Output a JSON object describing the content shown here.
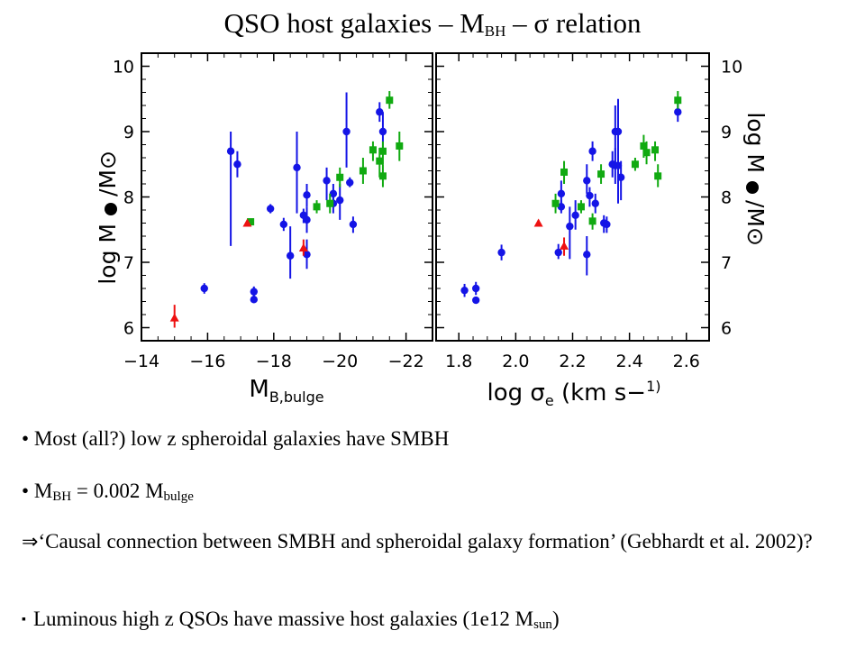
{
  "title": {
    "main": "QSO host galaxies",
    "dash1": "–",
    "m": "M",
    "bh": "BH",
    "dash2": "–",
    "sigma": "σ",
    "rel": "relation"
  },
  "bullets": {
    "b1": {
      "marker": "•",
      "text": "Most (all?) low z spheroidal galaxies have SMBH"
    },
    "b2": {
      "marker": "•",
      "m1": "M",
      "s1": "BH",
      "eq": " = 0.002 M",
      "s2": "bulge"
    },
    "b3": {
      "arrow": "⇒",
      "text": "‘Causal connection between SMBH and spheroidal galaxy formation’ (Gebhardt et al. 2002)?"
    },
    "b4": {
      "marker": "▪",
      "text": "Luminous high z QSOs have massive host galaxies (1e12 M",
      "sub": "sun",
      "close": ")"
    }
  },
  "chart_data": [
    {
      "type": "scatter",
      "xlabel": "M_B,bulge",
      "ylabel": "log M● / M⊙",
      "xlim": [
        -14,
        -22.8
      ],
      "ylim": [
        5.8,
        10.2
      ],
      "xticks": [
        -14,
        -16,
        -18,
        -20,
        -22
      ],
      "xtick_labels": [
        "−14",
        "−16",
        "−18",
        "−20",
        "−22"
      ],
      "yticks": [
        6,
        7,
        8,
        9,
        10
      ],
      "ytick_labels": [
        "6",
        "7",
        "8",
        "9",
        "10"
      ],
      "series": [
        {
          "color": "#1414e6",
          "marker": "circle",
          "points": [
            {
              "x": -15.9,
              "y": 6.6,
              "lo": 6.52,
              "hi": 6.68
            },
            {
              "x": -16.7,
              "y": 8.7,
              "lo": 7.25,
              "hi": 9.0
            },
            {
              "x": -16.9,
              "y": 8.5,
              "lo": 8.3,
              "hi": 8.7
            },
            {
              "x": -17.4,
              "y": 6.55,
              "lo": 6.47,
              "hi": 6.63
            },
            {
              "x": -17.4,
              "y": 6.43,
              "lo": 6.38,
              "hi": 6.48
            },
            {
              "x": -17.9,
              "y": 7.82,
              "lo": 7.75,
              "hi": 7.89
            },
            {
              "x": -18.3,
              "y": 7.58,
              "lo": 7.48,
              "hi": 7.68
            },
            {
              "x": -18.5,
              "y": 7.1,
              "lo": 6.75,
              "hi": 7.55
            },
            {
              "x": -18.7,
              "y": 8.45,
              "lo": 7.75,
              "hi": 9.0
            },
            {
              "x": -18.9,
              "y": 7.72,
              "lo": 7.6,
              "hi": 7.82
            },
            {
              "x": -19.0,
              "y": 7.12,
              "lo": 6.9,
              "hi": 7.35
            },
            {
              "x": -19.0,
              "y": 7.65,
              "lo": 7.45,
              "hi": 7.85
            },
            {
              "x": -19.0,
              "y": 8.03,
              "lo": 7.85,
              "hi": 8.2
            },
            {
              "x": -19.6,
              "y": 8.25,
              "lo": 7.95,
              "hi": 8.45
            },
            {
              "x": -19.8,
              "y": 8.05,
              "lo": 7.9,
              "hi": 8.2
            },
            {
              "x": -19.8,
              "y": 7.9,
              "lo": 7.75,
              "hi": 8.05
            },
            {
              "x": -20.0,
              "y": 7.95,
              "lo": 7.65,
              "hi": 8.2
            },
            {
              "x": -20.2,
              "y": 9.0,
              "lo": 8.45,
              "hi": 9.6
            },
            {
              "x": -20.4,
              "y": 7.58,
              "lo": 7.45,
              "hi": 7.7
            },
            {
              "x": -21.2,
              "y": 9.3,
              "lo": 9.15,
              "hi": 9.45
            },
            {
              "x": -21.3,
              "y": 9.0,
              "lo": 8.7,
              "hi": 9.3
            },
            {
              "x": -20.3,
              "y": 8.22,
              "lo": 8.15,
              "hi": 8.3
            }
          ]
        },
        {
          "color": "#11aa11",
          "marker": "square",
          "points": [
            {
              "x": -19.3,
              "y": 7.85,
              "lo": 7.75,
              "hi": 7.95
            },
            {
              "x": -19.7,
              "y": 7.9,
              "lo": 7.75,
              "hi": 8.05
            },
            {
              "x": -20.0,
              "y": 8.3,
              "lo": 8.15,
              "hi": 8.45
            },
            {
              "x": -20.7,
              "y": 8.4,
              "lo": 8.2,
              "hi": 8.6
            },
            {
              "x": -21.0,
              "y": 8.72,
              "lo": 8.55,
              "hi": 8.85
            },
            {
              "x": -21.2,
              "y": 8.55,
              "lo": 8.3,
              "hi": 8.75
            },
            {
              "x": -21.3,
              "y": 8.32,
              "lo": 8.15,
              "hi": 8.5
            },
            {
              "x": -21.3,
              "y": 8.7,
              "lo": 8.5,
              "hi": 8.85
            },
            {
              "x": -21.5,
              "y": 9.48,
              "lo": 9.35,
              "hi": 9.62
            },
            {
              "x": -21.8,
              "y": 8.78,
              "lo": 8.55,
              "hi": 9.0
            },
            {
              "x": -17.3,
              "y": 7.62,
              "lo": 7.58,
              "hi": 7.66
            }
          ]
        },
        {
          "color": "#ee1111",
          "marker": "triangle",
          "points": [
            {
              "x": -15.0,
              "y": 6.15,
              "lo": 6.0,
              "hi": 6.35
            },
            {
              "x": -17.2,
              "y": 7.6,
              "lo": 7.55,
              "hi": 7.65
            },
            {
              "x": -18.9,
              "y": 7.22,
              "lo": 7.1,
              "hi": 7.35
            }
          ]
        }
      ]
    },
    {
      "type": "scatter",
      "xlabel": "log σe (km s−1)",
      "ylabel": "log M● / M⊙",
      "xlim": [
        1.72,
        2.68
      ],
      "ylim": [
        5.8,
        10.2
      ],
      "xticks": [
        1.8,
        2.0,
        2.2,
        2.4,
        2.6
      ],
      "xtick_labels": [
        "1.8",
        "2.0",
        "2.2",
        "2.4",
        "2.6"
      ],
      "yticks": [
        6,
        7,
        8,
        9,
        10
      ],
      "ytick_labels": [
        "6",
        "7",
        "8",
        "9",
        "10"
      ],
      "series": [
        {
          "color": "#1414e6",
          "marker": "circle",
          "points": [
            {
              "x": 1.82,
              "y": 6.57,
              "lo": 6.47,
              "hi": 6.67
            },
            {
              "x": 1.86,
              "y": 6.6,
              "lo": 6.5,
              "hi": 6.7
            },
            {
              "x": 1.86,
              "y": 6.42,
              "lo": 6.37,
              "hi": 6.47
            },
            {
              "x": 1.95,
              "y": 7.15,
              "lo": 7.03,
              "hi": 7.27
            },
            {
              "x": 2.15,
              "y": 7.15,
              "lo": 7.05,
              "hi": 7.28
            },
            {
              "x": 2.16,
              "y": 7.85,
              "lo": 7.75,
              "hi": 7.95
            },
            {
              "x": 2.16,
              "y": 8.05,
              "lo": 7.85,
              "hi": 8.25
            },
            {
              "x": 2.19,
              "y": 7.55,
              "lo": 7.05,
              "hi": 7.85
            },
            {
              "x": 2.21,
              "y": 7.72,
              "lo": 7.5,
              "hi": 7.95
            },
            {
              "x": 2.25,
              "y": 7.12,
              "lo": 6.8,
              "hi": 7.4
            },
            {
              "x": 2.25,
              "y": 8.25,
              "lo": 8.05,
              "hi": 8.5
            },
            {
              "x": 2.26,
              "y": 8.02,
              "lo": 7.85,
              "hi": 8.15
            },
            {
              "x": 2.27,
              "y": 8.7,
              "lo": 8.55,
              "hi": 8.85
            },
            {
              "x": 2.28,
              "y": 7.9,
              "lo": 7.75,
              "hi": 8.05
            },
            {
              "x": 2.31,
              "y": 7.6,
              "lo": 7.45,
              "hi": 7.72
            },
            {
              "x": 2.32,
              "y": 7.58,
              "lo": 7.45,
              "hi": 7.7
            },
            {
              "x": 2.34,
              "y": 8.5,
              "lo": 8.3,
              "hi": 8.7
            },
            {
              "x": 2.35,
              "y": 8.48,
              "lo": 8.2,
              "hi": 8.75
            },
            {
              "x": 2.35,
              "y": 9.0,
              "lo": 8.5,
              "hi": 9.4
            },
            {
              "x": 2.36,
              "y": 9.0,
              "lo": 8.5,
              "hi": 9.5
            },
            {
              "x": 2.36,
              "y": 8.48,
              "lo": 7.9,
              "hi": 8.6
            },
            {
              "x": 2.37,
              "y": 8.3,
              "lo": 7.95,
              "hi": 8.55
            },
            {
              "x": 2.57,
              "y": 9.3,
              "lo": 9.15,
              "hi": 9.45
            }
          ]
        },
        {
          "color": "#11aa11",
          "marker": "square",
          "points": [
            {
              "x": 2.14,
              "y": 7.9,
              "lo": 7.75,
              "hi": 8.05
            },
            {
              "x": 2.17,
              "y": 8.38,
              "lo": 8.2,
              "hi": 8.55
            },
            {
              "x": 2.23,
              "y": 7.85,
              "lo": 7.75,
              "hi": 7.95
            },
            {
              "x": 2.27,
              "y": 7.63,
              "lo": 7.5,
              "hi": 7.75
            },
            {
              "x": 2.3,
              "y": 8.35,
              "lo": 8.2,
              "hi": 8.5
            },
            {
              "x": 2.42,
              "y": 8.5,
              "lo": 8.4,
              "hi": 8.6
            },
            {
              "x": 2.45,
              "y": 8.78,
              "lo": 8.6,
              "hi": 8.95
            },
            {
              "x": 2.46,
              "y": 8.68,
              "lo": 8.5,
              "hi": 8.85
            },
            {
              "x": 2.49,
              "y": 8.72,
              "lo": 8.55,
              "hi": 8.85
            },
            {
              "x": 2.5,
              "y": 8.32,
              "lo": 8.15,
              "hi": 8.5
            },
            {
              "x": 2.57,
              "y": 9.48,
              "lo": 9.35,
              "hi": 9.62
            }
          ]
        },
        {
          "color": "#ee1111",
          "marker": "triangle",
          "points": [
            {
              "x": 2.08,
              "y": 7.6,
              "lo": 7.55,
              "hi": 7.65
            },
            {
              "x": 2.17,
              "y": 7.25,
              "lo": 7.1,
              "hi": 7.38
            }
          ]
        }
      ]
    }
  ]
}
